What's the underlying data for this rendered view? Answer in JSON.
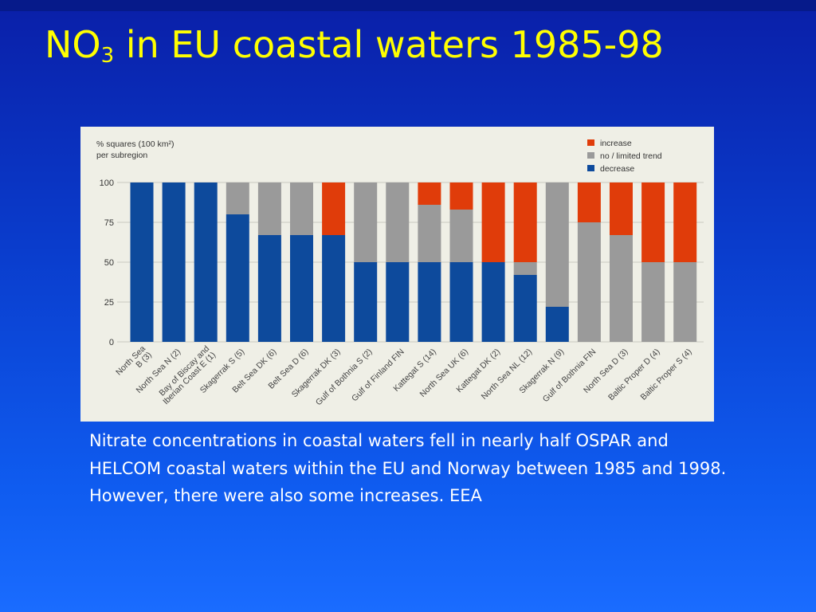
{
  "slide": {
    "title_main": "NO",
    "title_sub": "3",
    "title_rest": " in EU coastal waters 1985-98",
    "caption_line1": "Nitrate concentrations in coastal waters fell in nearly half OSPAR and HELCOM coastal waters within the EU and Norway between 1985 and 1998.",
    "caption_line2": "However, there were also some increases. EEA"
  },
  "chart_data": {
    "type": "bar",
    "stacked": true,
    "ylabel_line1": "% squares (100 km²)",
    "ylabel_line2": "per subregion",
    "ylim": [
      0,
      100
    ],
    "yticks": [
      0,
      25,
      50,
      75,
      100
    ],
    "grid": true,
    "legend_position": "top-right",
    "categories": [
      [
        "North Sea",
        "B (3)"
      ],
      [
        "North Sea N (2)"
      ],
      [
        "Bay of Biscay and",
        "Iberian Coast E (1)"
      ],
      [
        "Skagerrak S (5)"
      ],
      [
        "Belt Sea DK (6)"
      ],
      [
        "Belt Sea D (6)"
      ],
      [
        "Skagerrak DK (3)"
      ],
      [
        "Gulf of Bothnia S (2)"
      ],
      [
        "Gulf of Finland FIN"
      ],
      [
        "Kattegat S (14)"
      ],
      [
        "North Sea UK (6)"
      ],
      [
        "Kattegat DK (2)"
      ],
      [
        "North Sea NL (12)"
      ],
      [
        "Skagerrak N (9)"
      ],
      [
        "Gulf of Bothnia FIN"
      ],
      [
        "North Sea D (3)"
      ],
      [
        "Baltic Proper D (4)"
      ],
      [
        "Baltic Proper S (4)"
      ]
    ],
    "series": [
      {
        "name": "decrease",
        "color": "#0d4a9c",
        "values": [
          100,
          100,
          100,
          80,
          67,
          67,
          67,
          50,
          50,
          50,
          50,
          50,
          42,
          22,
          0,
          0,
          0,
          0
        ]
      },
      {
        "name": "no / limited trend",
        "color": "#9a9a9a",
        "values": [
          0,
          0,
          0,
          20,
          33,
          33,
          0,
          50,
          50,
          36,
          33,
          0,
          8,
          78,
          75,
          67,
          50,
          50
        ]
      },
      {
        "name": "increase",
        "color": "#e03c0a",
        "values": [
          0,
          0,
          0,
          0,
          0,
          0,
          33,
          0,
          0,
          14,
          17,
          50,
          50,
          0,
          25,
          33,
          50,
          50
        ]
      }
    ],
    "legend_order": [
      "increase",
      "no / limited trend",
      "decrease"
    ]
  }
}
